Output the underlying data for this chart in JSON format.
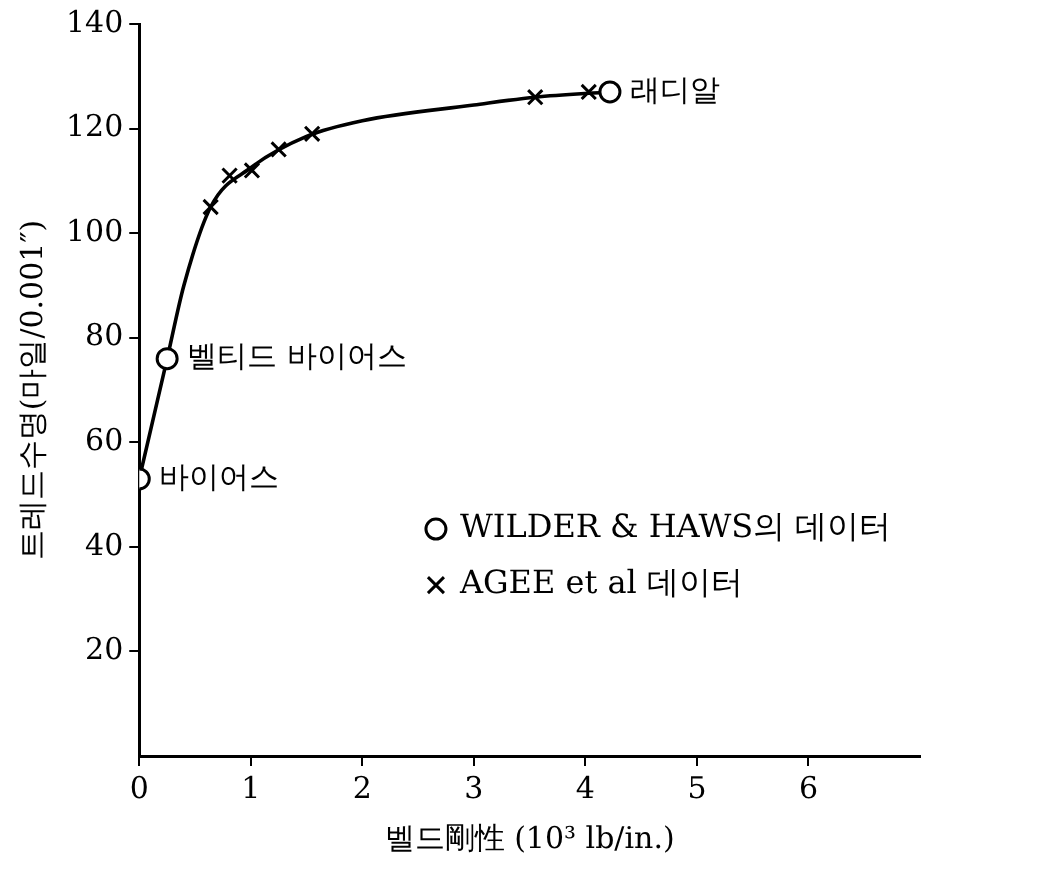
{
  "chart_data": {
    "type": "scatter",
    "xlabel": "벨드剛性 (10³ lb/in.)",
    "ylabel": "트레드수명(마일/0.001″)",
    "xlim": [
      0,
      7
    ],
    "xticks": [
      0,
      1,
      2,
      3,
      4,
      5,
      6
    ],
    "ylim": [
      0,
      140
    ],
    "yticks": [
      20,
      40,
      60,
      80,
      100,
      120,
      140
    ],
    "grid": false,
    "legend": "right",
    "series": [
      {
        "type": "line",
        "color": "#000000",
        "marker": "none",
        "x": [
          0,
          0.25,
          0.4,
          0.64,
          1.0,
          1.5,
          2.0,
          3.0,
          3.55,
          4.22
        ],
        "values": [
          53,
          76,
          90,
          105,
          112.5,
          118.5,
          121.5,
          124.5,
          126,
          127
        ]
      },
      {
        "name": "WILDER & HAWS의 데이터",
        "color": "#000000",
        "marker": "circle",
        "x": [
          0,
          0.25,
          4.22
        ],
        "values": [
          53,
          76,
          127
        ]
      },
      {
        "name": "AGEE et al 데이터",
        "color": "#000000",
        "marker": "cross",
        "x": [
          0.64,
          0.81,
          1.01,
          1.25,
          1.55,
          3.55,
          4.03
        ],
        "values": [
          105,
          111,
          112,
          116,
          119,
          126,
          127
        ]
      }
    ],
    "annotations": [
      {
        "text": "바이어스",
        "x": 0,
        "y": 53
      },
      {
        "text": "벨티드 바이어스",
        "x": 0.25,
        "y": 76
      },
      {
        "text": "래디알",
        "x": 4.22,
        "y": 127
      }
    ]
  }
}
